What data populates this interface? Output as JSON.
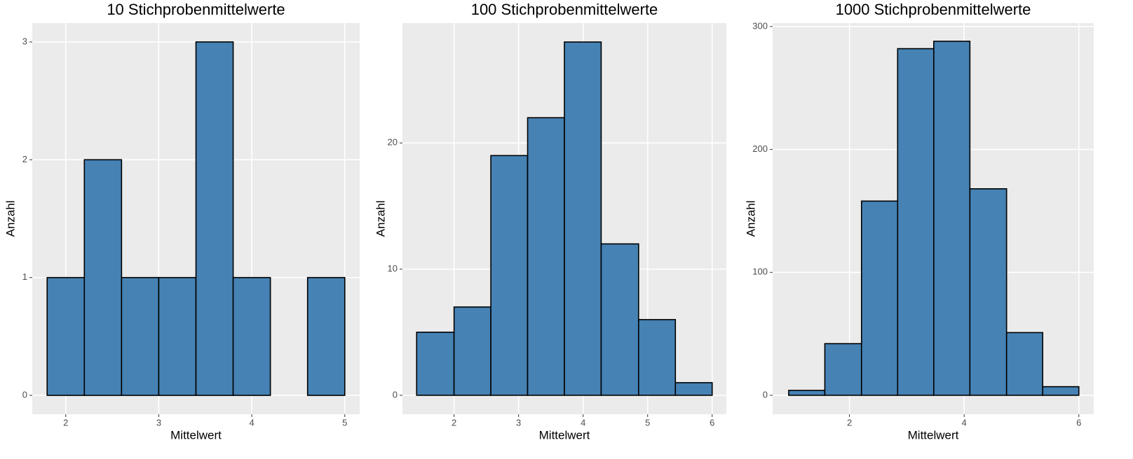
{
  "chart_data": [
    {
      "type": "histogram",
      "title": "10 Stichprobenmittelwerte",
      "xlabel": "Mittelwert",
      "ylabel": "Anzahl",
      "bins": [
        1.8,
        2.2,
        2.6,
        3.0,
        3.4,
        3.8,
        4.2,
        4.6,
        5.0
      ],
      "counts": [
        1,
        2,
        1,
        1,
        3,
        1,
        0,
        1
      ],
      "xlim": [
        1.64,
        5.16
      ],
      "ylim": [
        -0.16,
        3.16
      ],
      "xticks": [
        2,
        3,
        4,
        5
      ],
      "yticks": [
        0,
        1,
        2,
        3
      ],
      "color": "#4682b4",
      "grid": true
    },
    {
      "type": "histogram",
      "title": "100 Stichprobenmittelwerte",
      "xlabel": "Mittelwert",
      "ylabel": "Anzahl",
      "bins": [
        1.42,
        2.0,
        2.57,
        3.14,
        3.71,
        4.28,
        4.86,
        5.43,
        6.0
      ],
      "counts": [
        5,
        7,
        19,
        22,
        28,
        12,
        6,
        1
      ],
      "xlim": [
        1.2,
        6.22
      ],
      "ylim": [
        -1.5,
        29.5
      ],
      "xticks": [
        2,
        3,
        4,
        5,
        6
      ],
      "yticks": [
        0,
        10,
        20
      ],
      "color": "#4682b4",
      "grid": true
    },
    {
      "type": "histogram",
      "title": "1000 Stichprobenmittelwerte",
      "xlabel": "Mittelwert",
      "ylabel": "Anzahl",
      "bins": [
        0.94,
        1.57,
        2.21,
        2.84,
        3.47,
        4.1,
        4.74,
        5.37,
        6.0
      ],
      "counts": [
        4,
        42,
        158,
        282,
        288,
        168,
        51,
        7
      ],
      "xlim": [
        0.66,
        6.26
      ],
      "ylim": [
        -15.4,
        302.8
      ],
      "xticks": [
        2,
        4,
        6
      ],
      "yticks": [
        0,
        100,
        200,
        300
      ],
      "color": "#4682b4",
      "grid": true
    }
  ]
}
